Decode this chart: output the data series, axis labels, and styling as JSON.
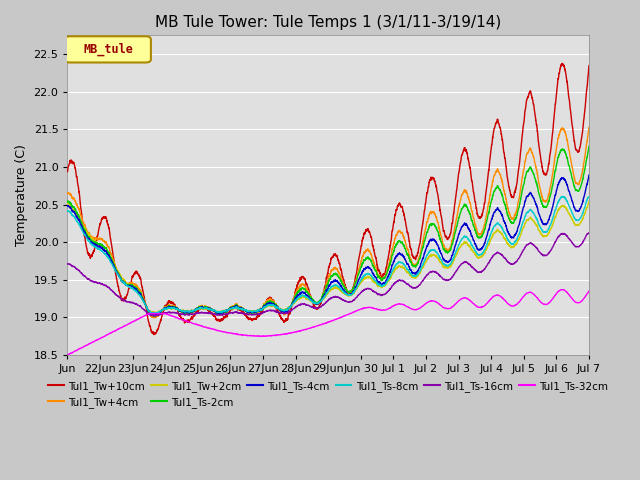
{
  "title": "MB Tule Tower: Tule Temps 1 (3/1/11-3/19/14)",
  "ylabel": "Temperature (C)",
  "ylim": [
    18.5,
    22.75
  ],
  "yticks": [
    18.5,
    19.0,
    19.5,
    20.0,
    20.5,
    21.0,
    21.5,
    22.0,
    22.5
  ],
  "series": [
    {
      "label": "Tul1_Tw+10cm",
      "color": "#cc0000",
      "lw": 1.0
    },
    {
      "label": "Tul1_Tw+4cm",
      "color": "#ff8c00",
      "lw": 1.0
    },
    {
      "label": "Tul1_Tw+2cm",
      "color": "#cccc00",
      "lw": 1.0
    },
    {
      "label": "Tul1_Ts-2cm",
      "color": "#00cc00",
      "lw": 1.0
    },
    {
      "label": "Tul1_Ts-4cm",
      "color": "#0000cc",
      "lw": 1.0
    },
    {
      "label": "Tul1_Ts-8cm",
      "color": "#00cccc",
      "lw": 1.0
    },
    {
      "label": "Tul1_Ts-16cm",
      "color": "#8800aa",
      "lw": 1.0
    },
    {
      "label": "Tul1_Ts-32cm",
      "color": "#ff00ff",
      "lw": 1.0
    }
  ],
  "legend_box_color": "#ffff99",
  "legend_box_edge": "#aa8800",
  "legend_text": "MB_tule",
  "tick_labels": [
    "Jun",
    "22Jun",
    "23Jun",
    "24Jun",
    "25Jun",
    "26Jun",
    "27Jun",
    "28Jun",
    "29Jun",
    "Jun 30",
    "Jul 1",
    "Jul 2",
    "Jul 3",
    "Jul 4",
    "Jul 5",
    "Jul 6",
    "Jul 7"
  ],
  "fig_facecolor": "#c8c8c8",
  "ax_facecolor": "#e0e0e0"
}
